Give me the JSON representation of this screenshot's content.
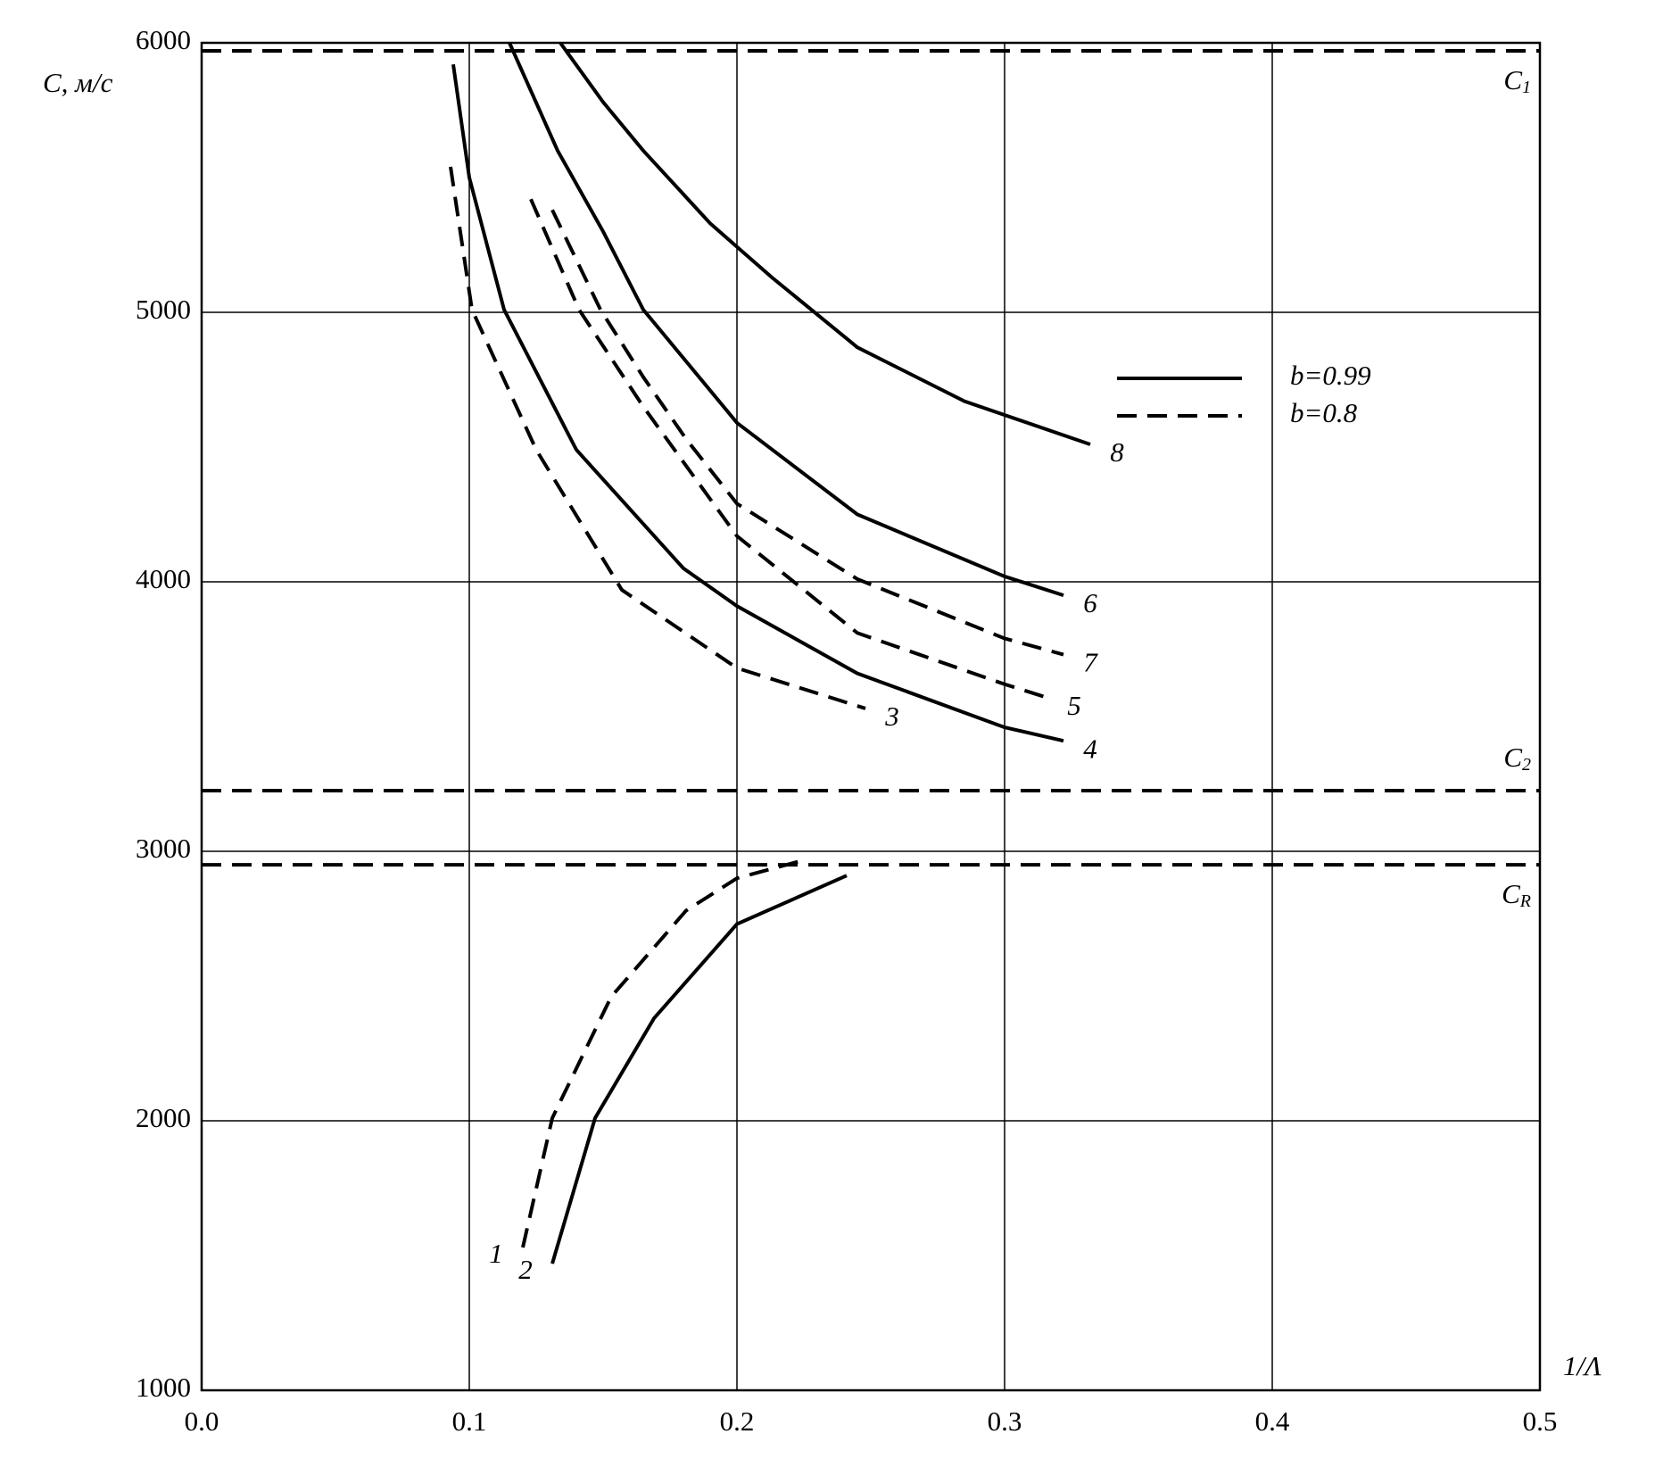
{
  "chart_data": {
    "type": "line",
    "x_label": "1/Λ",
    "y_label": "C, м/с",
    "xlim": [
      0,
      0.5
    ],
    "ylim": [
      1000,
      6000
    ],
    "xticks": [
      {
        "value": 0,
        "label": "0.0"
      },
      0.1,
      0.2,
      0.3,
      0.4,
      0.5
    ],
    "yticks": [
      1000,
      2000,
      3000,
      4000,
      5000,
      6000
    ],
    "grid": true,
    "color": "#000000",
    "legend": [
      {
        "label": "b=0.99",
        "dashed": false
      },
      {
        "label": "b=0.8",
        "dashed": true
      }
    ],
    "reference_lines": [
      {
        "label": "C",
        "sub": "1",
        "value": 5970
      },
      {
        "label": "C",
        "sub": "2",
        "value": 3225
      },
      {
        "label": "C",
        "sub": "R",
        "value": 2950
      }
    ],
    "series": [
      {
        "name": "1",
        "dashed": true,
        "x": [
          0.12,
          0.131,
          0.153,
          0.181,
          0.2,
          0.226
        ],
        "values": [
          1530,
          2010,
          2460,
          2780,
          2900,
          2970
        ]
      },
      {
        "name": "2",
        "dashed": false,
        "x": [
          0.131,
          0.147,
          0.169,
          0.2,
          0.241
        ],
        "values": [
          1470,
          2010,
          2380,
          2730,
          2910
        ]
      },
      {
        "name": "3",
        "dashed": true,
        "x": [
          0.093,
          0.101,
          0.125,
          0.157,
          0.2,
          0.248
        ],
        "values": [
          5540,
          5010,
          4490,
          3970,
          3680,
          3530
        ]
      },
      {
        "name": "4",
        "dashed": false,
        "x": [
          0.094,
          0.1,
          0.113,
          0.14,
          0.18,
          0.2,
          0.245,
          0.3,
          0.322
        ],
        "values": [
          5920,
          5500,
          5010,
          4490,
          4050,
          3910,
          3660,
          3460,
          3410
        ]
      },
      {
        "name": "5",
        "dashed": true,
        "x": [
          0.123,
          0.141,
          0.165,
          0.2,
          0.245,
          0.3,
          0.316
        ],
        "values": [
          5420,
          5010,
          4650,
          4170,
          3810,
          3620,
          3570
        ]
      },
      {
        "name": "6",
        "dashed": false,
        "x": [
          0.115,
          0.133,
          0.15,
          0.165,
          0.2,
          0.245,
          0.3,
          0.322
        ],
        "values": [
          6000,
          5600,
          5300,
          5010,
          4590,
          4250,
          4020,
          3950
        ]
      },
      {
        "name": "7",
        "dashed": true,
        "x": [
          0.131,
          0.149,
          0.165,
          0.181,
          0.2,
          0.245,
          0.3,
          0.322
        ],
        "values": [
          5380,
          5010,
          4760,
          4530,
          4290,
          4010,
          3790,
          3730
        ]
      },
      {
        "name": "8",
        "dashed": false,
        "x": [
          0.134,
          0.15,
          0.165,
          0.19,
          0.213,
          0.245,
          0.285,
          0.332
        ],
        "values": [
          6000,
          5780,
          5600,
          5330,
          5130,
          4870,
          4670,
          4510
        ]
      }
    ]
  }
}
